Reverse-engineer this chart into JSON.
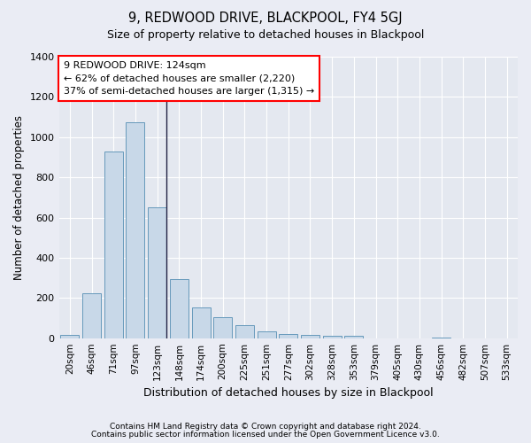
{
  "title": "9, REDWOOD DRIVE, BLACKPOOL, FY4 5GJ",
  "subtitle": "Size of property relative to detached houses in Blackpool",
  "xlabel": "Distribution of detached houses by size in Blackpool",
  "ylabel": "Number of detached properties",
  "bar_labels": [
    "20sqm",
    "46sqm",
    "71sqm",
    "97sqm",
    "123sqm",
    "148sqm",
    "174sqm",
    "200sqm",
    "225sqm",
    "251sqm",
    "277sqm",
    "302sqm",
    "328sqm",
    "353sqm",
    "379sqm",
    "405sqm",
    "430sqm",
    "456sqm",
    "482sqm",
    "507sqm",
    "533sqm"
  ],
  "bar_values": [
    15,
    225,
    930,
    1075,
    650,
    295,
    155,
    105,
    65,
    32,
    20,
    18,
    12,
    10,
    0,
    0,
    0,
    5,
    0,
    0,
    0
  ],
  "bar_color": "#c8d8e8",
  "bar_edge_color": "#6699bb",
  "highlight_index": 4,
  "highlight_line_color": "#222244",
  "annotation_line1": "9 REDWOOD DRIVE: 124sqm",
  "annotation_line2": "← 62% of detached houses are smaller (2,220)",
  "annotation_line3": "37% of semi-detached houses are larger (1,315) →",
  "annotation_box_color": "white",
  "annotation_box_edge": "red",
  "ylim": [
    0,
    1400
  ],
  "yticks": [
    0,
    200,
    400,
    600,
    800,
    1000,
    1200,
    1400
  ],
  "footer_line1": "Contains HM Land Registry data © Crown copyright and database right 2024.",
  "footer_line2": "Contains public sector information licensed under the Open Government Licence v3.0.",
  "bg_color": "#eaecf4",
  "plot_bg_color": "#e4e8f0",
  "grid_color": "white"
}
